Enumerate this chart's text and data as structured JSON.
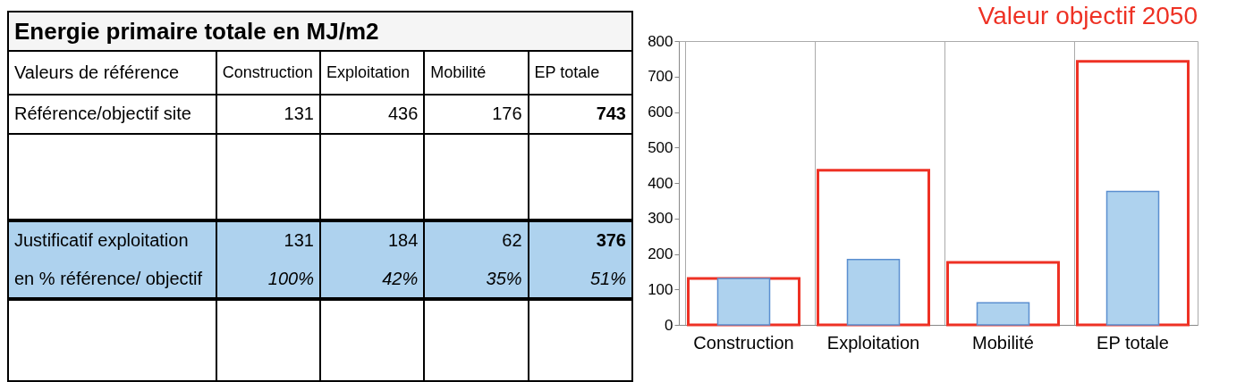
{
  "chart_data": {
    "type": "bar",
    "title": "Energie primaire totale en MJ/m2",
    "categories": [
      "Construction",
      "Exploitation",
      "Mobilité",
      "EP totale"
    ],
    "series": [
      {
        "color": "#ee3124",
        "values": [
          131,
          436,
          176,
          743
        ]
      },
      {
        "color": "#aed2ee",
        "values": [
          131,
          184,
          62,
          376
        ]
      }
    ],
    "ylim": [
      0,
      800
    ],
    "yticks": [
      0,
      100,
      200,
      300,
      400,
      500,
      600,
      700,
      800
    ],
    "grid": "x",
    "annotations": [
      "Valeur objectif 2050",
      "Valeurs de référence",
      "Référence/objectif site",
      "131",
      "436",
      "176",
      "743",
      "Justificatif exploitation",
      "131",
      "184",
      "62",
      "376",
      "en % référence/ objectif",
      "100%",
      "42%",
      "35%",
      "51%"
    ]
  }
}
